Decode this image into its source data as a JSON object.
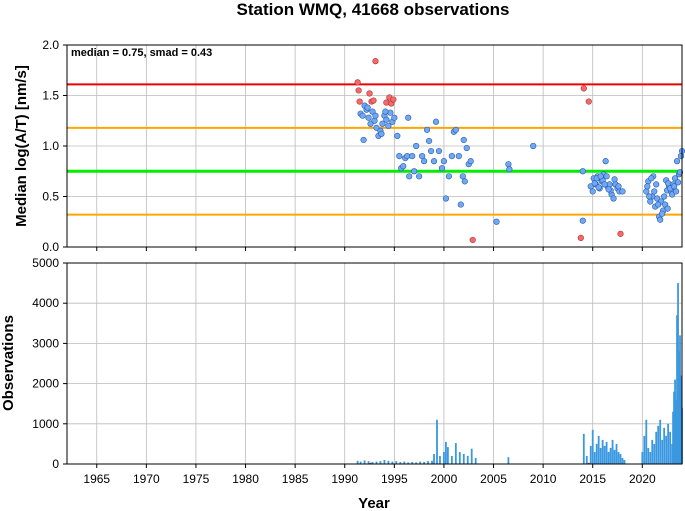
{
  "chart_data": [
    {
      "type": "scatter",
      "title": "Station WMQ, 41668 observations",
      "xlabel": "",
      "ylabel": "Median log(A/T) [nm/s]",
      "annotation": "median = 0.75, smad = 0.43",
      "xlim": [
        1962,
        2024
      ],
      "ylim": [
        0.0,
        2.0
      ],
      "x_ticks": [
        1965,
        1970,
        1975,
        1980,
        1985,
        1990,
        1995,
        2000,
        2005,
        2010,
        2015,
        2020
      ],
      "y_ticks": [
        "0.0",
        "0.5",
        "1.0",
        "1.5",
        "2.0"
      ],
      "grid": true,
      "colors": {
        "median_line": "#00ee00",
        "smad_lines": "#ffa500",
        "outlier_line": "#ee0000",
        "normal_points": "#6fa8f5",
        "outlier_points": "#f46a6a"
      },
      "reference_lines": [
        {
          "name": "median",
          "value": 0.75,
          "color": "#00ee00"
        },
        {
          "name": "median + smad",
          "value": 1.18,
          "color": "#ffa500"
        },
        {
          "name": "median - smad",
          "value": 0.32,
          "color": "#ffa500"
        },
        {
          "name": "upper limit",
          "value": 1.61,
          "color": "#ee0000"
        }
      ],
      "series": [
        {
          "kind": "normal",
          "points": [
            [
              1991.6,
              1.32
            ],
            [
              1991.8,
              1.3
            ],
            [
              1992.0,
              1.4
            ],
            [
              1992.2,
              1.36
            ],
            [
              1992.4,
              1.28
            ],
            [
              1992.6,
              1.22
            ],
            [
              1992.8,
              1.34
            ],
            [
              1993.0,
              1.25
            ],
            [
              1993.2,
              1.18
            ],
            [
              1993.4,
              1.1
            ],
            [
              1993.6,
              1.15
            ],
            [
              1993.8,
              1.22
            ],
            [
              1994.0,
              1.3
            ],
            [
              1994.2,
              1.26
            ],
            [
              1994.4,
              1.2
            ],
            [
              1994.6,
              1.33
            ],
            [
              1994.8,
              1.24
            ],
            [
              1995.0,
              1.28
            ],
            [
              1991.9,
              1.06
            ],
            [
              1992.3,
              1.38
            ],
            [
              1993.1,
              1.3
            ],
            [
              1993.7,
              1.12
            ],
            [
              1994.1,
              1.34
            ],
            [
              1995.3,
              1.1
            ],
            [
              1995.5,
              0.9
            ],
            [
              1995.7,
              0.78
            ],
            [
              1995.9,
              0.8
            ],
            [
              1996.1,
              0.88
            ],
            [
              1996.3,
              0.9
            ],
            [
              1996.4,
              1.28
            ],
            [
              1996.5,
              0.7
            ],
            [
              1996.8,
              0.9
            ],
            [
              1997.0,
              0.75
            ],
            [
              1997.2,
              1.0
            ],
            [
              1997.5,
              0.7
            ],
            [
              1997.8,
              0.9
            ],
            [
              1998.0,
              0.85
            ],
            [
              1998.3,
              1.16
            ],
            [
              1998.5,
              1.05
            ],
            [
              1998.7,
              0.95
            ],
            [
              1999.0,
              0.85
            ],
            [
              1999.2,
              1.24
            ],
            [
              1999.5,
              0.95
            ],
            [
              1999.8,
              0.78
            ],
            [
              2000.0,
              0.85
            ],
            [
              2000.2,
              0.48
            ],
            [
              2000.5,
              0.7
            ],
            [
              2000.8,
              0.9
            ],
            [
              2001.0,
              1.14
            ],
            [
              2001.2,
              1.16
            ],
            [
              2001.5,
              0.9
            ],
            [
              2001.7,
              0.42
            ],
            [
              2001.9,
              0.7
            ],
            [
              2002.1,
              0.65
            ],
            [
              2002.0,
              1.06
            ],
            [
              2002.3,
              0.98
            ],
            [
              2002.5,
              0.82
            ],
            [
              2002.7,
              0.85
            ],
            [
              2005.3,
              0.25
            ],
            [
              2006.5,
              0.82
            ],
            [
              2006.6,
              0.77
            ],
            [
              2009.0,
              1.0
            ],
            [
              2014.0,
              0.75
            ],
            [
              2014.0,
              0.26
            ],
            [
              2014.8,
              0.6
            ],
            [
              2015.0,
              0.55
            ],
            [
              2015.1,
              0.68
            ],
            [
              2015.3,
              0.62
            ],
            [
              2015.5,
              0.7
            ],
            [
              2015.7,
              0.58
            ],
            [
              2015.9,
              0.65
            ],
            [
              2016.1,
              0.72
            ],
            [
              2016.3,
              0.85
            ],
            [
              2016.5,
              0.6
            ],
            [
              2016.7,
              0.62
            ],
            [
              2016.9,
              0.52
            ],
            [
              2017.1,
              0.48
            ],
            [
              2017.3,
              0.62
            ],
            [
              2017.5,
              0.58
            ],
            [
              2017.7,
              0.55
            ],
            [
              2015.2,
              0.63
            ],
            [
              2015.6,
              0.59
            ],
            [
              2016.0,
              0.66
            ],
            [
              2016.4,
              0.7
            ],
            [
              2016.8,
              0.56
            ],
            [
              2017.2,
              0.67
            ],
            [
              2017.6,
              0.6
            ],
            [
              2018.0,
              0.55
            ],
            [
              2015.4,
              0.68
            ],
            [
              2015.8,
              0.7
            ],
            [
              2016.2,
              0.62
            ],
            [
              2016.6,
              0.57
            ],
            [
              2020.4,
              0.55
            ],
            [
              2020.6,
              0.65
            ],
            [
              2020.8,
              0.45
            ],
            [
              2021.0,
              0.5
            ],
            [
              2021.1,
              0.7
            ],
            [
              2021.3,
              0.4
            ],
            [
              2021.5,
              0.48
            ],
            [
              2021.7,
              0.3
            ],
            [
              2021.9,
              0.45
            ],
            [
              2022.1,
              0.36
            ],
            [
              2022.3,
              0.42
            ],
            [
              2022.5,
              0.56
            ],
            [
              2022.7,
              0.6
            ],
            [
              2022.9,
              0.55
            ],
            [
              2023.1,
              0.62
            ],
            [
              2023.3,
              0.68
            ],
            [
              2023.5,
              0.85
            ],
            [
              2023.7,
              0.72
            ],
            [
              2023.9,
              0.9
            ],
            [
              2024.0,
              0.95
            ],
            [
              2020.5,
              0.6
            ],
            [
              2020.9,
              0.68
            ],
            [
              2021.2,
              0.55
            ],
            [
              2021.6,
              0.42
            ],
            [
              2021.8,
              0.27
            ],
            [
              2022.0,
              0.33
            ],
            [
              2022.2,
              0.5
            ],
            [
              2022.4,
              0.66
            ],
            [
              2022.6,
              0.63
            ],
            [
              2022.8,
              0.58
            ],
            [
              2023.0,
              0.52
            ],
            [
              2023.2,
              0.6
            ],
            [
              2023.4,
              0.55
            ],
            [
              2023.6,
              0.64
            ],
            [
              2023.8,
              0.74
            ],
            [
              2021.4,
              0.62
            ],
            [
              2022.55,
              0.38
            ],
            [
              2020.7,
              0.5
            ]
          ]
        },
        {
          "kind": "outlier",
          "points": [
            [
              1991.3,
              1.63
            ],
            [
              1991.4,
              1.55
            ],
            [
              1991.5,
              1.44
            ],
            [
              1992.5,
              1.52
            ],
            [
              1992.7,
              1.44
            ],
            [
              1992.9,
              1.45
            ],
            [
              1993.1,
              1.84
            ],
            [
              1994.2,
              1.43
            ],
            [
              1994.5,
              1.48
            ],
            [
              1994.7,
              1.42
            ],
            [
              1994.9,
              1.46
            ],
            [
              2002.9,
              0.07
            ],
            [
              2013.8,
              0.09
            ],
            [
              2014.1,
              1.57
            ],
            [
              2014.6,
              1.44
            ],
            [
              2017.8,
              0.13
            ]
          ]
        }
      ]
    },
    {
      "type": "bar",
      "title": "",
      "xlabel": "Year",
      "ylabel": "Observations",
      "xlim": [
        1962,
        2024
      ],
      "ylim": [
        0,
        5000
      ],
      "x_ticks": [
        1965,
        1970,
        1975,
        1980,
        1985,
        1990,
        1995,
        2000,
        2005,
        2010,
        2015,
        2020
      ],
      "y_ticks": [
        "0",
        "1000",
        "2000",
        "3000",
        "4000",
        "5000"
      ],
      "grid": true,
      "colors": {
        "bars": "#3a98e0",
        "outlier_bars": "#e03a3a"
      },
      "series": [
        {
          "name": "",
          "x": [
            1991.3,
            1991.6,
            1992.0,
            1992.4,
            1992.8,
            1993.2,
            1993.6,
            1994.0,
            1994.4,
            1994.8,
            1995.2,
            1995.6,
            1996.0,
            1996.4,
            1996.8,
            1997.2,
            1997.6,
            1998.0,
            1998.4,
            1998.8,
            1999.0,
            1999.3,
            1999.6,
            2000.0,
            2000.2,
            2000.4,
            2000.8,
            2001.2,
            2001.6,
            2002.0,
            2002.4,
            2002.8,
            2003.2,
            2006.5,
            2014.1,
            2014.4,
            2014.8,
            2015.0,
            2015.2,
            2015.4,
            2015.6,
            2015.8,
            2016.0,
            2016.2,
            2016.4,
            2016.6,
            2016.8,
            2017.0,
            2017.2,
            2017.4,
            2017.6,
            2017.8,
            2018.0,
            2018.2,
            2020.0,
            2020.2,
            2020.4,
            2020.6,
            2020.8,
            2021.0,
            2021.2,
            2021.4,
            2021.6,
            2021.8,
            2022.0,
            2022.2,
            2022.4,
            2022.6,
            2022.8,
            2023.0,
            2023.1,
            2023.2,
            2023.3,
            2023.4,
            2023.5,
            2023.6,
            2023.7,
            2023.8,
            2023.9,
            2024.0
          ],
          "values": [
            80,
            60,
            90,
            70,
            50,
            60,
            70,
            100,
            80,
            60,
            70,
            50,
            60,
            40,
            50,
            40,
            60,
            50,
            70,
            80,
            250,
            1100,
            200,
            300,
            550,
            420,
            200,
            520,
            300,
            250,
            200,
            380,
            150,
            170,
            750,
            200,
            450,
            850,
            300,
            500,
            700,
            400,
            600,
            450,
            550,
            300,
            400,
            600,
            350,
            500,
            300,
            250,
            150,
            100,
            300,
            700,
            1100,
            400,
            300,
            600,
            500,
            800,
            950,
            1100,
            600,
            900,
            700,
            1000,
            800,
            500,
            1300,
            1800,
            2100,
            1600,
            3700,
            4500,
            2800,
            3200,
            2200,
            1400
          ]
        },
        {
          "name": "",
          "kind": "outlier",
          "x": [
            1992.6,
            2014.6
          ],
          "values": [
            30,
            30
          ]
        }
      ]
    }
  ]
}
